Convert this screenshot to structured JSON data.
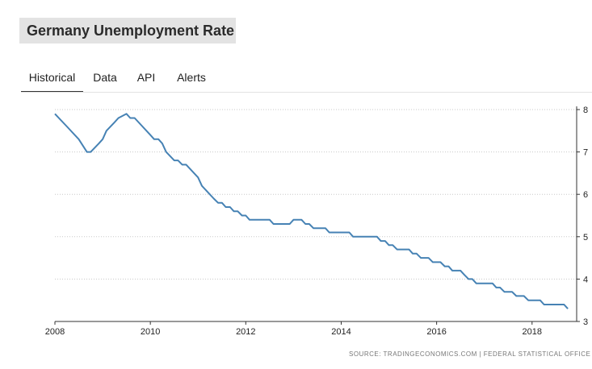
{
  "header": {
    "title": "Germany Unemployment Rate"
  },
  "tabs": [
    {
      "label": "Historical",
      "active": true
    },
    {
      "label": "Data",
      "active": false
    },
    {
      "label": "API",
      "active": false
    },
    {
      "label": "Alerts",
      "active": false
    }
  ],
  "footer": {
    "source": "SOURCE: TRADINGECONOMICS.COM  |  FEDERAL STATISTICAL OFFICE"
  },
  "colors": {
    "line": "#4682b4",
    "grid": "#c8c8c8",
    "axis": "#333333"
  },
  "chart_data": {
    "type": "line",
    "title": "",
    "xlabel": "",
    "ylabel": "",
    "x_ticks": [
      "2008",
      "2010",
      "2012",
      "2014",
      "2016",
      "2018"
    ],
    "y_ticks": [
      3,
      4,
      5,
      6,
      7,
      8
    ],
    "xlim": [
      2008.0,
      2018.833
    ],
    "ylim": [
      3,
      8
    ],
    "y_axis_side": "right",
    "grid": "horizontal dotted",
    "series": [
      {
        "values": [
          [
            2008.0,
            7.9
          ],
          [
            2008.25,
            7.6
          ],
          [
            2008.5,
            7.3
          ],
          [
            2008.67,
            7.0
          ],
          [
            2008.75,
            7.0
          ],
          [
            2008.92,
            7.2
          ],
          [
            2009.0,
            7.3
          ],
          [
            2009.08,
            7.5
          ],
          [
            2009.25,
            7.7
          ],
          [
            2009.33,
            7.8
          ],
          [
            2009.5,
            7.9
          ],
          [
            2009.58,
            7.8
          ],
          [
            2009.67,
            7.8
          ],
          [
            2010.0,
            7.4
          ],
          [
            2010.08,
            7.3
          ],
          [
            2010.17,
            7.3
          ],
          [
            2010.25,
            7.2
          ],
          [
            2010.33,
            7.0
          ],
          [
            2010.5,
            6.8
          ],
          [
            2010.58,
            6.8
          ],
          [
            2010.67,
            6.7
          ],
          [
            2010.75,
            6.7
          ],
          [
            2011.0,
            6.4
          ],
          [
            2011.08,
            6.2
          ],
          [
            2011.33,
            5.9
          ],
          [
            2011.42,
            5.8
          ],
          [
            2011.5,
            5.8
          ],
          [
            2011.58,
            5.7
          ],
          [
            2011.67,
            5.7
          ],
          [
            2011.75,
            5.6
          ],
          [
            2011.83,
            5.6
          ],
          [
            2011.92,
            5.5
          ],
          [
            2012.0,
            5.5
          ],
          [
            2012.08,
            5.4
          ],
          [
            2012.5,
            5.4
          ],
          [
            2012.58,
            5.3
          ],
          [
            2012.92,
            5.3
          ],
          [
            2013.0,
            5.4
          ],
          [
            2013.17,
            5.4
          ],
          [
            2013.25,
            5.3
          ],
          [
            2013.33,
            5.3
          ],
          [
            2013.42,
            5.2
          ],
          [
            2013.67,
            5.2
          ],
          [
            2013.75,
            5.1
          ],
          [
            2014.17,
            5.1
          ],
          [
            2014.25,
            5.0
          ],
          [
            2014.75,
            5.0
          ],
          [
            2014.83,
            4.9
          ],
          [
            2014.92,
            4.9
          ],
          [
            2015.0,
            4.8
          ],
          [
            2015.08,
            4.8
          ],
          [
            2015.17,
            4.7
          ],
          [
            2015.42,
            4.7
          ],
          [
            2015.5,
            4.6
          ],
          [
            2015.58,
            4.6
          ],
          [
            2015.67,
            4.5
          ],
          [
            2015.83,
            4.5
          ],
          [
            2015.92,
            4.4
          ],
          [
            2016.08,
            4.4
          ],
          [
            2016.17,
            4.3
          ],
          [
            2016.25,
            4.3
          ],
          [
            2016.33,
            4.2
          ],
          [
            2016.5,
            4.2
          ],
          [
            2016.58,
            4.1
          ],
          [
            2016.67,
            4.0
          ],
          [
            2016.75,
            4.0
          ],
          [
            2016.83,
            3.9
          ],
          [
            2017.17,
            3.9
          ],
          [
            2017.25,
            3.8
          ],
          [
            2017.33,
            3.8
          ],
          [
            2017.42,
            3.7
          ],
          [
            2017.58,
            3.7
          ],
          [
            2017.67,
            3.6
          ],
          [
            2017.83,
            3.6
          ],
          [
            2017.92,
            3.5
          ],
          [
            2018.17,
            3.5
          ],
          [
            2018.25,
            3.4
          ],
          [
            2018.67,
            3.4
          ],
          [
            2018.75,
            3.3
          ]
        ]
      }
    ]
  }
}
